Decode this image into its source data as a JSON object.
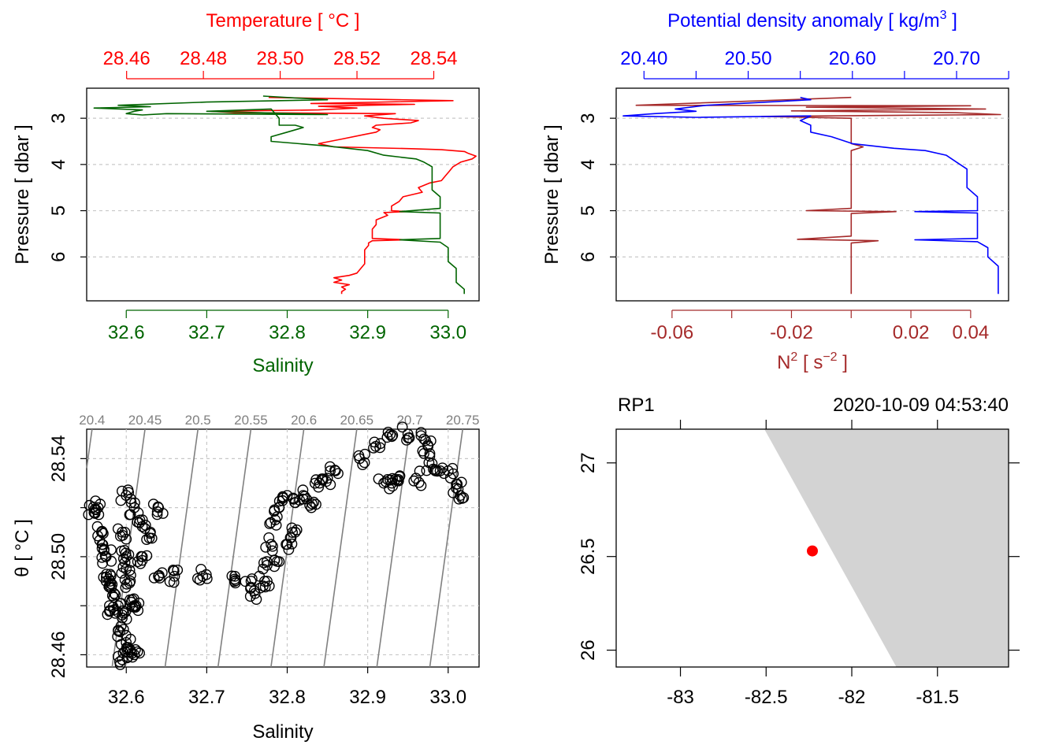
{
  "chart_data": [
    {
      "id": "ctd-profile-ts",
      "type": "line",
      "top_axis_label": "Temperature [ °C ]",
      "top_ticks": [
        "28.46",
        "28.48",
        "28.50",
        "28.52",
        "28.54"
      ],
      "top_range": [
        28.4496,
        28.5518
      ],
      "bottom_axis_label": "Salinity",
      "bottom_ticks": [
        "32.6",
        "32.7",
        "32.8",
        "32.9",
        "33.0"
      ],
      "bottom_range": [
        32.5508,
        33.0384
      ],
      "ylabel": "Pressure [ dbar ]",
      "y_ticks": [
        "3",
        "4",
        "5",
        "6"
      ],
      "ylim": [
        6.95,
        2.35
      ],
      "grid": "dotted at pressure ticks",
      "colors": {
        "temperature": "#ff0000",
        "salinity": "#006400"
      },
      "series": [
        {
          "name": "Temperature",
          "axis": "top",
          "points": [
            [
              28.497,
              2.55
            ],
            [
              28.545,
              2.62
            ],
            [
              28.508,
              2.68
            ],
            [
              28.535,
              2.7
            ],
            [
              28.51,
              2.74
            ],
            [
              28.52,
              2.78
            ],
            [
              28.51,
              2.82
            ],
            [
              28.482,
              2.85
            ],
            [
              28.488,
              2.88
            ],
            [
              28.53,
              2.9
            ],
            [
              28.522,
              2.95
            ],
            [
              28.527,
              3.0
            ],
            [
              28.536,
              3.05
            ],
            [
              28.534,
              3.1
            ],
            [
              28.525,
              3.15
            ],
            [
              28.524,
              3.2
            ],
            [
              28.526,
              3.25
            ],
            [
              28.525,
              3.3
            ],
            [
              28.522,
              3.35
            ],
            [
              28.516,
              3.45
            ],
            [
              28.51,
              3.55
            ],
            [
              28.514,
              3.62
            ],
            [
              28.535,
              3.66
            ],
            [
              28.542,
              3.68
            ],
            [
              28.548,
              3.72
            ],
            [
              28.549,
              3.76
            ],
            [
              28.551,
              3.82
            ],
            [
              28.55,
              3.88
            ],
            [
              28.547,
              3.95
            ],
            [
              28.545,
              4.05
            ],
            [
              28.544,
              4.15
            ],
            [
              28.543,
              4.25
            ],
            [
              28.542,
              4.35
            ],
            [
              28.539,
              4.4
            ],
            [
              28.536,
              4.5
            ],
            [
              28.537,
              4.6
            ],
            [
              28.532,
              4.7
            ],
            [
              28.531,
              4.8
            ],
            [
              28.529,
              4.9
            ],
            [
              28.529,
              5.0
            ],
            [
              28.533,
              5.02
            ],
            [
              28.527,
              5.04
            ],
            [
              28.528,
              5.1
            ],
            [
              28.525,
              5.2
            ],
            [
              28.525,
              5.3
            ],
            [
              28.524,
              5.4
            ],
            [
              28.524,
              5.5
            ],
            [
              28.524,
              5.6
            ],
            [
              28.533,
              5.63
            ],
            [
              28.524,
              5.65
            ],
            [
              28.523,
              5.7
            ],
            [
              28.523,
              5.75
            ],
            [
              28.522,
              5.85
            ],
            [
              28.522,
              5.95
            ],
            [
              28.522,
              6.05
            ],
            [
              28.522,
              6.15
            ],
            [
              28.521,
              6.25
            ],
            [
              28.52,
              6.35
            ],
            [
              28.518,
              6.4
            ],
            [
              28.514,
              6.45
            ],
            [
              28.516,
              6.5
            ],
            [
              28.514,
              6.55
            ],
            [
              28.518,
              6.6
            ],
            [
              28.516,
              6.65
            ],
            [
              28.517,
              6.7
            ],
            [
              28.516,
              6.75
            ],
            [
              28.516,
              6.8
            ]
          ]
        },
        {
          "name": "Salinity",
          "axis": "bottom",
          "points": [
            [
              32.77,
              2.52
            ],
            [
              32.85,
              2.6
            ],
            [
              32.7,
              2.65
            ],
            [
              32.59,
              2.72
            ],
            [
              32.63,
              2.75
            ],
            [
              32.56,
              2.78
            ],
            [
              32.62,
              2.82
            ],
            [
              32.61,
              2.85
            ],
            [
              32.6,
              2.9
            ],
            [
              32.62,
              2.93
            ],
            [
              32.65,
              2.9
            ],
            [
              32.85,
              2.92
            ],
            [
              32.7,
              2.85
            ],
            [
              32.78,
              2.8
            ],
            [
              32.79,
              3.0
            ],
            [
              32.79,
              3.05
            ],
            [
              32.79,
              3.15
            ],
            [
              32.81,
              3.15
            ],
            [
              32.82,
              3.2
            ],
            [
              32.8,
              3.3
            ],
            [
              32.78,
              3.4
            ],
            [
              32.78,
              3.5
            ],
            [
              32.85,
              3.6
            ],
            [
              32.9,
              3.7
            ],
            [
              32.92,
              3.8
            ],
            [
              32.96,
              3.88
            ],
            [
              32.97,
              3.95
            ],
            [
              32.98,
              4.05
            ],
            [
              32.98,
              4.2
            ],
            [
              32.98,
              4.35
            ],
            [
              32.98,
              4.55
            ],
            [
              32.99,
              4.7
            ],
            [
              32.99,
              4.85
            ],
            [
              32.99,
              4.95
            ],
            [
              32.94,
              5.02
            ],
            [
              32.99,
              5.05
            ],
            [
              32.99,
              5.15
            ],
            [
              32.99,
              5.3
            ],
            [
              32.99,
              5.45
            ],
            [
              32.99,
              5.6
            ],
            [
              32.94,
              5.63
            ],
            [
              32.99,
              5.68
            ],
            [
              33.0,
              5.8
            ],
            [
              33.0,
              5.95
            ],
            [
              33.0,
              6.1
            ],
            [
              33.01,
              6.25
            ],
            [
              33.01,
              6.4
            ],
            [
              33.01,
              6.55
            ],
            [
              33.02,
              6.7
            ],
            [
              33.02,
              6.8
            ]
          ]
        }
      ]
    },
    {
      "id": "ctd-profile-density",
      "type": "line",
      "top_axis_label_text": "Potential density anomaly [ kg/m",
      "top_axis_label_sup": "3",
      "top_axis_label_end": " ]",
      "top_ticks": [
        "20.40",
        "20.50",
        "20.60",
        "20.70"
      ],
      "top_range": [
        20.3733,
        20.7499
      ],
      "bottom_axis_label_text": "N",
      "bottom_axis_label_sup": "2",
      "bottom_axis_label_mid": " [ s",
      "bottom_axis_label_sup2": "−2",
      "bottom_axis_label_end": " ]",
      "bottom_ticks": [
        "-0.06",
        "-0.02",
        "0.02",
        "0.04"
      ],
      "bottom_range": [
        -0.0787,
        0.0527
      ],
      "ylabel": "Pressure [ dbar ]",
      "y_ticks": [
        "3",
        "4",
        "5",
        "6"
      ],
      "ylim": [
        6.95,
        2.35
      ],
      "colors": {
        "density": "#0000ff",
        "n2": "#a52a2a"
      },
      "series": [
        {
          "name": "Potential density anomaly",
          "axis": "top",
          "points": [
            [
              20.55,
              2.55
            ],
            [
              20.56,
              2.6
            ],
            [
              20.46,
              2.72
            ],
            [
              20.43,
              2.8
            ],
            [
              20.45,
              2.85
            ],
            [
              20.41,
              2.9
            ],
            [
              20.38,
              2.95
            ],
            [
              20.45,
              2.98
            ],
            [
              20.56,
              2.95
            ],
            [
              20.55,
              3.05
            ],
            [
              20.56,
              3.15
            ],
            [
              20.56,
              3.3
            ],
            [
              20.58,
              3.4
            ],
            [
              20.6,
              3.55
            ],
            [
              20.64,
              3.65
            ],
            [
              20.67,
              3.7
            ],
            [
              20.69,
              3.8
            ],
            [
              20.7,
              3.95
            ],
            [
              20.71,
              4.1
            ],
            [
              20.71,
              4.3
            ],
            [
              20.71,
              4.5
            ],
            [
              20.72,
              4.7
            ],
            [
              20.72,
              4.9
            ],
            [
              20.72,
              5.0
            ],
            [
              20.66,
              5.02
            ],
            [
              20.72,
              5.05
            ],
            [
              20.72,
              5.2
            ],
            [
              20.72,
              5.4
            ],
            [
              20.72,
              5.6
            ],
            [
              20.66,
              5.63
            ],
            [
              20.72,
              5.67
            ],
            [
              20.73,
              5.8
            ],
            [
              20.73,
              6.0
            ],
            [
              20.74,
              6.2
            ],
            [
              20.74,
              6.4
            ],
            [
              20.74,
              6.6
            ],
            [
              20.74,
              6.8
            ]
          ]
        },
        {
          "name": "N2",
          "axis": "bottom",
          "points": [
            [
              0.0,
              2.55
            ],
            [
              -0.072,
              2.72
            ],
            [
              0.04,
              2.73
            ],
            [
              -0.015,
              2.76
            ],
            [
              0.045,
              2.8
            ],
            [
              -0.02,
              2.84
            ],
            [
              0.035,
              2.88
            ],
            [
              0.05,
              2.92
            ],
            [
              -0.03,
              2.96
            ],
            [
              0.0,
              3.0
            ],
            [
              0.0,
              3.2
            ],
            [
              0.0,
              3.4
            ],
            [
              0.0,
              3.55
            ],
            [
              0.004,
              3.62
            ],
            [
              0.0,
              3.7
            ],
            [
              0.0,
              3.8
            ],
            [
              0.0,
              4.2
            ],
            [
              0.0,
              4.6
            ],
            [
              0.0,
              4.95
            ],
            [
              -0.015,
              5.0
            ],
            [
              0.015,
              5.02
            ],
            [
              0.0,
              5.06
            ],
            [
              0.0,
              5.3
            ],
            [
              0.0,
              5.55
            ],
            [
              -0.018,
              5.62
            ],
            [
              0.009,
              5.65
            ],
            [
              0.0,
              5.7
            ],
            [
              0.0,
              6.0
            ],
            [
              0.0,
              6.4
            ],
            [
              0.0,
              6.8
            ]
          ]
        }
      ]
    },
    {
      "id": "ts-diagram",
      "type": "scatter",
      "xlabel": "Salinity",
      "ylabel": "θ [ °C ]",
      "x_ticks": [
        "32.6",
        "32.7",
        "32.8",
        "32.9",
        "33.0"
      ],
      "y_ticks": [
        "28.46",
        "28.50",
        "28.54"
      ],
      "xlim": [
        32.5508,
        33.0384
      ],
      "ylim": [
        28.455,
        28.552
      ],
      "isopycnals": [
        "20.4",
        "20.45",
        "20.5",
        "20.55",
        "20.6",
        "20.65",
        "20.7",
        "20.75"
      ],
      "cluster_points": [
        [
          32.57,
          28.51
        ],
        [
          32.57,
          28.505
        ],
        [
          32.575,
          28.5
        ],
        [
          32.58,
          28.49
        ],
        [
          32.585,
          28.485
        ],
        [
          32.59,
          28.48
        ],
        [
          32.58,
          28.478
        ],
        [
          32.575,
          28.49
        ],
        [
          32.565,
          28.52
        ],
        [
          32.56,
          28.518
        ],
        [
          32.6,
          28.525
        ],
        [
          32.61,
          28.52
        ],
        [
          32.62,
          28.515
        ],
        [
          32.63,
          28.51
        ],
        [
          32.6,
          28.5
        ],
        [
          32.605,
          28.49
        ],
        [
          32.61,
          28.48
        ],
        [
          32.595,
          28.475
        ],
        [
          32.59,
          28.47
        ],
        [
          32.6,
          28.465
        ],
        [
          32.605,
          28.462
        ],
        [
          32.61,
          28.48
        ],
        [
          32.62,
          28.5
        ],
        [
          32.64,
          28.52
        ],
        [
          32.595,
          28.51
        ],
        [
          32.6,
          28.495
        ],
        [
          32.595,
          28.458
        ],
        [
          32.61,
          28.46
        ],
        [
          32.64,
          28.492
        ],
        [
          32.66,
          28.492
        ],
        [
          32.695,
          28.492
        ],
        [
          32.735,
          28.492
        ],
        [
          32.755,
          28.49
        ],
        [
          32.76,
          28.485
        ],
        [
          32.77,
          28.495
        ],
        [
          32.78,
          28.505
        ],
        [
          32.785,
          28.515
        ],
        [
          32.79,
          28.52
        ],
        [
          32.8,
          28.525
        ],
        [
          32.81,
          28.522
        ],
        [
          32.82,
          28.525
        ],
        [
          32.84,
          28.53
        ],
        [
          32.85,
          28.532
        ],
        [
          32.86,
          28.535
        ],
        [
          32.89,
          28.54
        ],
        [
          32.91,
          28.545
        ],
        [
          32.93,
          28.549
        ],
        [
          32.95,
          28.55
        ],
        [
          32.97,
          28.548
        ],
        [
          32.975,
          28.545
        ],
        [
          32.98,
          28.538
        ],
        [
          32.99,
          28.535
        ],
        [
          33.0,
          28.535
        ],
        [
          33.01,
          28.528
        ],
        [
          33.015,
          28.525
        ],
        [
          32.96,
          28.532
        ],
        [
          32.93,
          28.53
        ],
        [
          32.92,
          28.53
        ],
        [
          32.94,
          28.533
        ],
        [
          32.775,
          28.49
        ],
        [
          32.79,
          28.498
        ],
        [
          32.8,
          28.505
        ],
        [
          32.81,
          28.51
        ],
        [
          32.83,
          28.52
        ]
      ]
    },
    {
      "id": "station-map",
      "type": "scatter",
      "station": "RP1",
      "datetime": "2020-10-09 04:53:40",
      "x_ticks": [
        "-83",
        "-82.5",
        "-82",
        "-81.5"
      ],
      "y_ticks": [
        "26",
        "26.5",
        "27"
      ],
      "xlim": [
        -83.375,
        -81.085
      ],
      "ylim": [
        25.91,
        27.18
      ],
      "land_polygon": [
        [
          -82.51,
          27.18
        ],
        [
          -81.085,
          27.18
        ],
        [
          -81.085,
          25.91
        ],
        [
          -81.74,
          25.91
        ]
      ],
      "station_point": [
        -82.23,
        26.53
      ],
      "colors": {
        "land": "#d3d3d3",
        "station": "#ff0000"
      }
    }
  ]
}
